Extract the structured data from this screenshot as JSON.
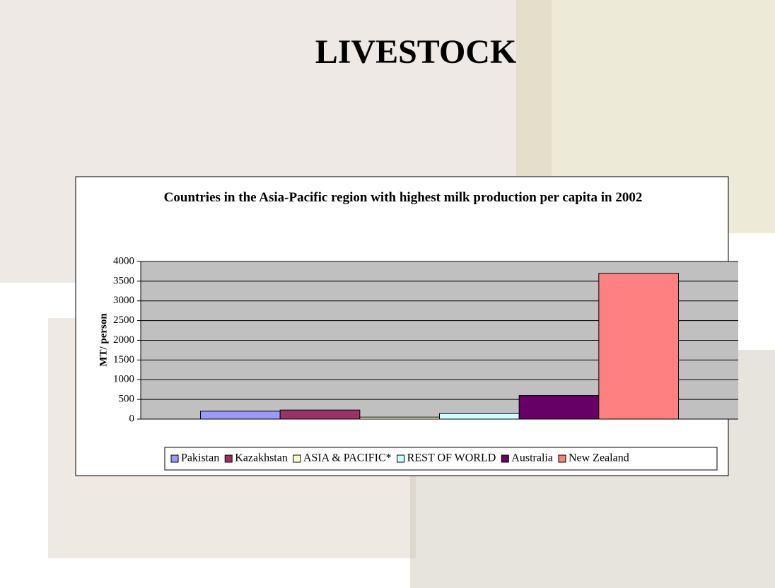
{
  "slide_title": "LIVESTOCK",
  "chart_data": {
    "type": "bar",
    "title": "Countries in the Asia-Pacific region with highest milk production per capita in 2002",
    "y_label": "MT/ person",
    "categories": [
      null
    ],
    "series": [
      {
        "name": "Pakistan",
        "color": "#9999ff",
        "values": [
          200
        ]
      },
      {
        "name": "Kazakhstan",
        "color": "#993366",
        "values": [
          230
        ]
      },
      {
        "name": "ASIA & PACIFIC*",
        "color": "#ffffcc",
        "values": [
          50
        ]
      },
      {
        "name": "REST OF WORLD",
        "color": "#ccffff",
        "values": [
          140
        ]
      },
      {
        "name": "Australia",
        "color": "#660066",
        "values": [
          600
        ]
      },
      {
        "name": "New Zealand",
        "color": "#ff8080",
        "values": [
          3700
        ]
      }
    ],
    "ylim": [
      0,
      4000
    ],
    "yticks": [
      0,
      500,
      1000,
      1500,
      2000,
      2500,
      3000,
      3500,
      4000
    ],
    "grid": true,
    "legend": "bottom"
  }
}
